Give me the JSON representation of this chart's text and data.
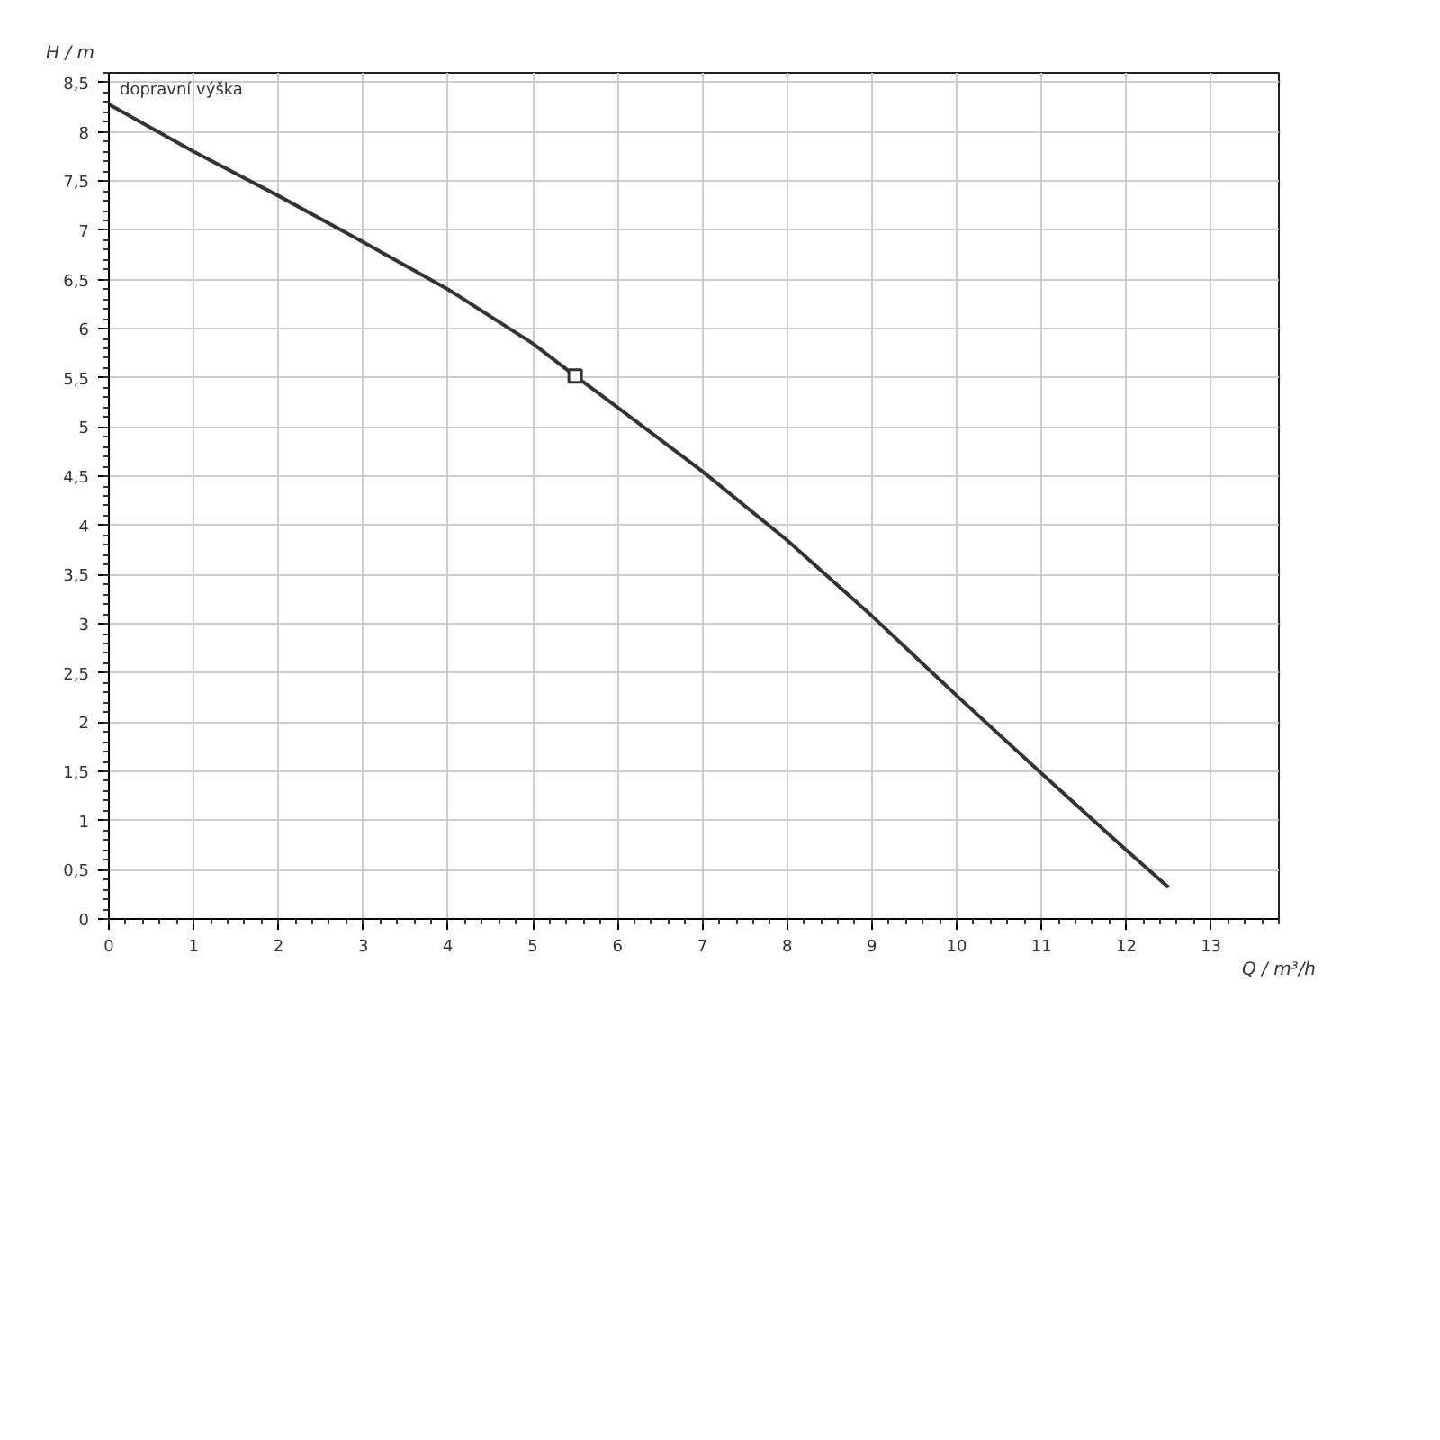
{
  "chart_data": {
    "type": "line",
    "xlabel": "Q / m³/h",
    "ylabel": "H / m",
    "annotations": [
      "dopravní výška"
    ],
    "xlim": [
      0,
      13.8
    ],
    "ylim": [
      0,
      8.6
    ],
    "xticks": [
      0,
      1,
      2,
      3,
      4,
      5,
      6,
      7,
      8,
      9,
      10,
      11,
      12,
      13
    ],
    "yticks": [
      0,
      {
        "value": 0.5,
        "label": "0,5"
      },
      1,
      {
        "value": 1.5,
        "label": "1,5"
      },
      2,
      {
        "value": 2.5,
        "label": "2,5"
      },
      3,
      {
        "value": 3.5,
        "label": "3,5"
      },
      4,
      {
        "value": 4.5,
        "label": "4,5"
      },
      5,
      {
        "value": 5.5,
        "label": "5,5"
      },
      6,
      {
        "value": 6.5,
        "label": "6,5"
      },
      7,
      {
        "value": 7.5,
        "label": "7,5"
      },
      8,
      {
        "value": 8.5,
        "label": "8,5"
      }
    ],
    "grid": true,
    "series": [
      {
        "color": "#333333",
        "marker": "none",
        "x": [
          0,
          1,
          2,
          3,
          4,
          5,
          5.5,
          6,
          7,
          8,
          9,
          10,
          11,
          12,
          12.5
        ],
        "values": [
          8.28,
          7.8,
          7.35,
          6.88,
          6.4,
          5.85,
          5.52,
          5.2,
          4.55,
          3.85,
          3.08,
          2.27,
          1.48,
          0.7,
          0.32
        ]
      },
      {
        "type": "scatter",
        "color": "#333333",
        "marker": "square",
        "x": [
          5.5
        ],
        "values": [
          5.52
        ]
      }
    ]
  }
}
